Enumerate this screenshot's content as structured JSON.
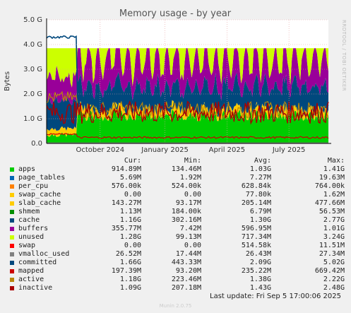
{
  "chart_data": {
    "type": "area",
    "title": "Memory usage - by year",
    "ylabel": "Bytes",
    "side_label": "RRDTOOL / TOBI OETIKER",
    "ylim": [
      0,
      5.0
    ],
    "y_unit": "G",
    "y_ticks": [
      "0.0",
      "1.0 G",
      "2.0 G",
      "3.0 G",
      "4.0 G",
      "5.0 G"
    ],
    "x_ticks": [
      "October 2024",
      "January 2025",
      "April 2025",
      "July 2025"
    ],
    "grid": true,
    "legend_placement": "bottom",
    "series": [
      {
        "name": "apps",
        "color": "#00cc00",
        "cur": "914.89M",
        "min": "134.46M",
        "avg": "1.03G",
        "max": "1.41G"
      },
      {
        "name": "page_tables",
        "color": "#0066b3",
        "cur": "5.69M",
        "min": "1.92M",
        "avg": "7.27M",
        "max": "19.63M"
      },
      {
        "name": "per_cpu",
        "color": "#ff8000",
        "cur": "576.00k",
        "min": "524.00k",
        "avg": "628.84k",
        "max": "764.00k"
      },
      {
        "name": "swap_cache",
        "color": "#ffcc00",
        "cur": "0.00",
        "min": "0.00",
        "avg": "77.80k",
        "max": "1.62M"
      },
      {
        "name": "slab_cache",
        "color": "#ffcc00",
        "cur": "143.27M",
        "min": "93.17M",
        "avg": "205.14M",
        "max": "477.66M"
      },
      {
        "name": "shmem",
        "color": "#008f00",
        "cur": "1.13M",
        "min": "184.00k",
        "avg": "6.79M",
        "max": "56.53M"
      },
      {
        "name": "cache",
        "color": "#00487d",
        "cur": "1.16G",
        "min": "302.16M",
        "avg": "1.30G",
        "max": "2.77G"
      },
      {
        "name": "buffers",
        "color": "#990099",
        "cur": "355.77M",
        "min": "7.42M",
        "avg": "596.95M",
        "max": "1.01G"
      },
      {
        "name": "unused",
        "color": "#ccff00",
        "cur": "1.28G",
        "min": "99.13M",
        "avg": "717.34M",
        "max": "3.24G"
      },
      {
        "name": "swap",
        "color": "#ff0000",
        "cur": "0.00",
        "min": "0.00",
        "avg": "514.58k",
        "max": "11.51M"
      },
      {
        "name": "vmalloc_used",
        "color": "#808080",
        "cur": "26.52M",
        "min": "17.44M",
        "avg": "26.43M",
        "max": "27.34M"
      },
      {
        "name": "committed",
        "color": "#00487d",
        "cur": "1.66G",
        "min": "443.33M",
        "avg": "2.09G",
        "max": "5.02G"
      },
      {
        "name": "mapped",
        "color": "#cc0000",
        "cur": "197.39M",
        "min": "93.20M",
        "avg": "235.22M",
        "max": "669.42M"
      },
      {
        "name": "active",
        "color": "#b8860b",
        "cur": "1.18G",
        "min": "223.46M",
        "avg": "1.38G",
        "max": "2.22G"
      },
      {
        "name": "inactive",
        "color": "#aa0000",
        "cur": "1.09G",
        "min": "207.18M",
        "avg": "1.43G",
        "max": "2.48G"
      }
    ],
    "total_memory_gb": 3.85
  },
  "legend_headers": {
    "cur": "Cur:",
    "min": "Min:",
    "avg": "Avg:",
    "max": "Max:"
  },
  "last_update": "Last update: Fri Sep  5 17:00:06 2025",
  "footer": "Munin 2.0.75"
}
